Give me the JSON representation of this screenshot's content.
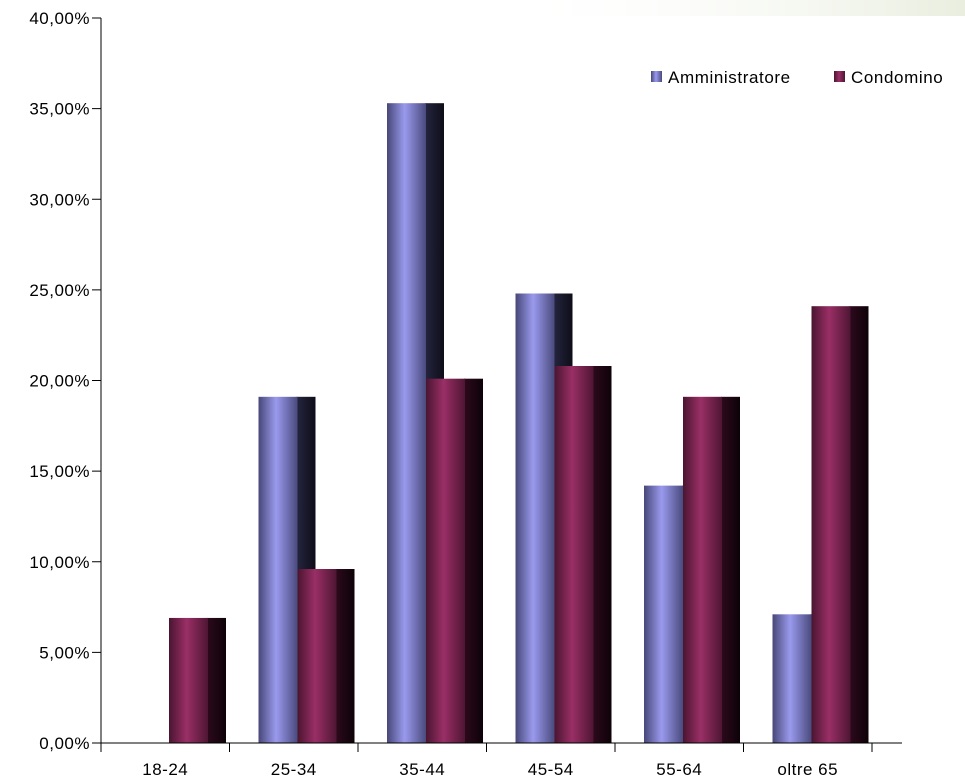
{
  "chart_data": {
    "type": "bar",
    "categories": [
      "18-24",
      "25-34",
      "35-44",
      "45-54",
      "55-64",
      "oltre 65"
    ],
    "series": [
      {
        "name": "Amministratore",
        "values": [
          0,
          19.1,
          35.3,
          24.8,
          14.2,
          7.1
        ],
        "color": "#5a5aa0"
      },
      {
        "name": "Condomino",
        "values": [
          6.9,
          9.6,
          20.1,
          20.8,
          19.1,
          24.1
        ],
        "color": "#7a2350"
      }
    ],
    "ylim": [
      0,
      40
    ],
    "yticks": [
      0,
      5,
      10,
      15,
      20,
      25,
      30,
      35,
      40
    ],
    "ytick_labels": [
      "0,00%",
      "5,00%",
      "10,00%",
      "15,00%",
      "20,00%",
      "25,00%",
      "30,00%",
      "35,00%",
      "40,00%"
    ],
    "legend_position": "top-right",
    "grid": false,
    "title": "",
    "xlabel": "",
    "ylabel": ""
  }
}
